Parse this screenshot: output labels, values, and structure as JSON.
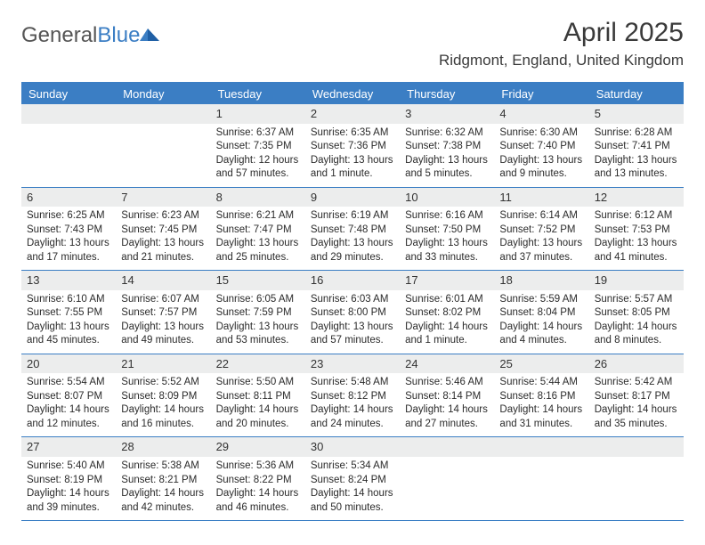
{
  "brand": {
    "part1": "General",
    "part2": "Blue"
  },
  "title": "April 2025",
  "location": "Ridgmont, England, United Kingdom",
  "colors": {
    "accent": "#3b7ec4",
    "daynum_bg": "#eceded",
    "text": "#333333",
    "bg": "#ffffff"
  },
  "weekdays": [
    "Sunday",
    "Monday",
    "Tuesday",
    "Wednesday",
    "Thursday",
    "Friday",
    "Saturday"
  ],
  "layout": {
    "first_weekday_index": 2,
    "days_in_month": 30
  },
  "days": [
    {
      "n": 1,
      "sunrise": "6:37 AM",
      "sunset": "7:35 PM",
      "daylight": "12 hours and 57 minutes."
    },
    {
      "n": 2,
      "sunrise": "6:35 AM",
      "sunset": "7:36 PM",
      "daylight": "13 hours and 1 minute."
    },
    {
      "n": 3,
      "sunrise": "6:32 AM",
      "sunset": "7:38 PM",
      "daylight": "13 hours and 5 minutes."
    },
    {
      "n": 4,
      "sunrise": "6:30 AM",
      "sunset": "7:40 PM",
      "daylight": "13 hours and 9 minutes."
    },
    {
      "n": 5,
      "sunrise": "6:28 AM",
      "sunset": "7:41 PM",
      "daylight": "13 hours and 13 minutes."
    },
    {
      "n": 6,
      "sunrise": "6:25 AM",
      "sunset": "7:43 PM",
      "daylight": "13 hours and 17 minutes."
    },
    {
      "n": 7,
      "sunrise": "6:23 AM",
      "sunset": "7:45 PM",
      "daylight": "13 hours and 21 minutes."
    },
    {
      "n": 8,
      "sunrise": "6:21 AM",
      "sunset": "7:47 PM",
      "daylight": "13 hours and 25 minutes."
    },
    {
      "n": 9,
      "sunrise": "6:19 AM",
      "sunset": "7:48 PM",
      "daylight": "13 hours and 29 minutes."
    },
    {
      "n": 10,
      "sunrise": "6:16 AM",
      "sunset": "7:50 PM",
      "daylight": "13 hours and 33 minutes."
    },
    {
      "n": 11,
      "sunrise": "6:14 AM",
      "sunset": "7:52 PM",
      "daylight": "13 hours and 37 minutes."
    },
    {
      "n": 12,
      "sunrise": "6:12 AM",
      "sunset": "7:53 PM",
      "daylight": "13 hours and 41 minutes."
    },
    {
      "n": 13,
      "sunrise": "6:10 AM",
      "sunset": "7:55 PM",
      "daylight": "13 hours and 45 minutes."
    },
    {
      "n": 14,
      "sunrise": "6:07 AM",
      "sunset": "7:57 PM",
      "daylight": "13 hours and 49 minutes."
    },
    {
      "n": 15,
      "sunrise": "6:05 AM",
      "sunset": "7:59 PM",
      "daylight": "13 hours and 53 minutes."
    },
    {
      "n": 16,
      "sunrise": "6:03 AM",
      "sunset": "8:00 PM",
      "daylight": "13 hours and 57 minutes."
    },
    {
      "n": 17,
      "sunrise": "6:01 AM",
      "sunset": "8:02 PM",
      "daylight": "14 hours and 1 minute."
    },
    {
      "n": 18,
      "sunrise": "5:59 AM",
      "sunset": "8:04 PM",
      "daylight": "14 hours and 4 minutes."
    },
    {
      "n": 19,
      "sunrise": "5:57 AM",
      "sunset": "8:05 PM",
      "daylight": "14 hours and 8 minutes."
    },
    {
      "n": 20,
      "sunrise": "5:54 AM",
      "sunset": "8:07 PM",
      "daylight": "14 hours and 12 minutes."
    },
    {
      "n": 21,
      "sunrise": "5:52 AM",
      "sunset": "8:09 PM",
      "daylight": "14 hours and 16 minutes."
    },
    {
      "n": 22,
      "sunrise": "5:50 AM",
      "sunset": "8:11 PM",
      "daylight": "14 hours and 20 minutes."
    },
    {
      "n": 23,
      "sunrise": "5:48 AM",
      "sunset": "8:12 PM",
      "daylight": "14 hours and 24 minutes."
    },
    {
      "n": 24,
      "sunrise": "5:46 AM",
      "sunset": "8:14 PM",
      "daylight": "14 hours and 27 minutes."
    },
    {
      "n": 25,
      "sunrise": "5:44 AM",
      "sunset": "8:16 PM",
      "daylight": "14 hours and 31 minutes."
    },
    {
      "n": 26,
      "sunrise": "5:42 AM",
      "sunset": "8:17 PM",
      "daylight": "14 hours and 35 minutes."
    },
    {
      "n": 27,
      "sunrise": "5:40 AM",
      "sunset": "8:19 PM",
      "daylight": "14 hours and 39 minutes."
    },
    {
      "n": 28,
      "sunrise": "5:38 AM",
      "sunset": "8:21 PM",
      "daylight": "14 hours and 42 minutes."
    },
    {
      "n": 29,
      "sunrise": "5:36 AM",
      "sunset": "8:22 PM",
      "daylight": "14 hours and 46 minutes."
    },
    {
      "n": 30,
      "sunrise": "5:34 AM",
      "sunset": "8:24 PM",
      "daylight": "14 hours and 50 minutes."
    }
  ],
  "labels": {
    "sunrise": "Sunrise:",
    "sunset": "Sunset:",
    "daylight": "Daylight:"
  }
}
